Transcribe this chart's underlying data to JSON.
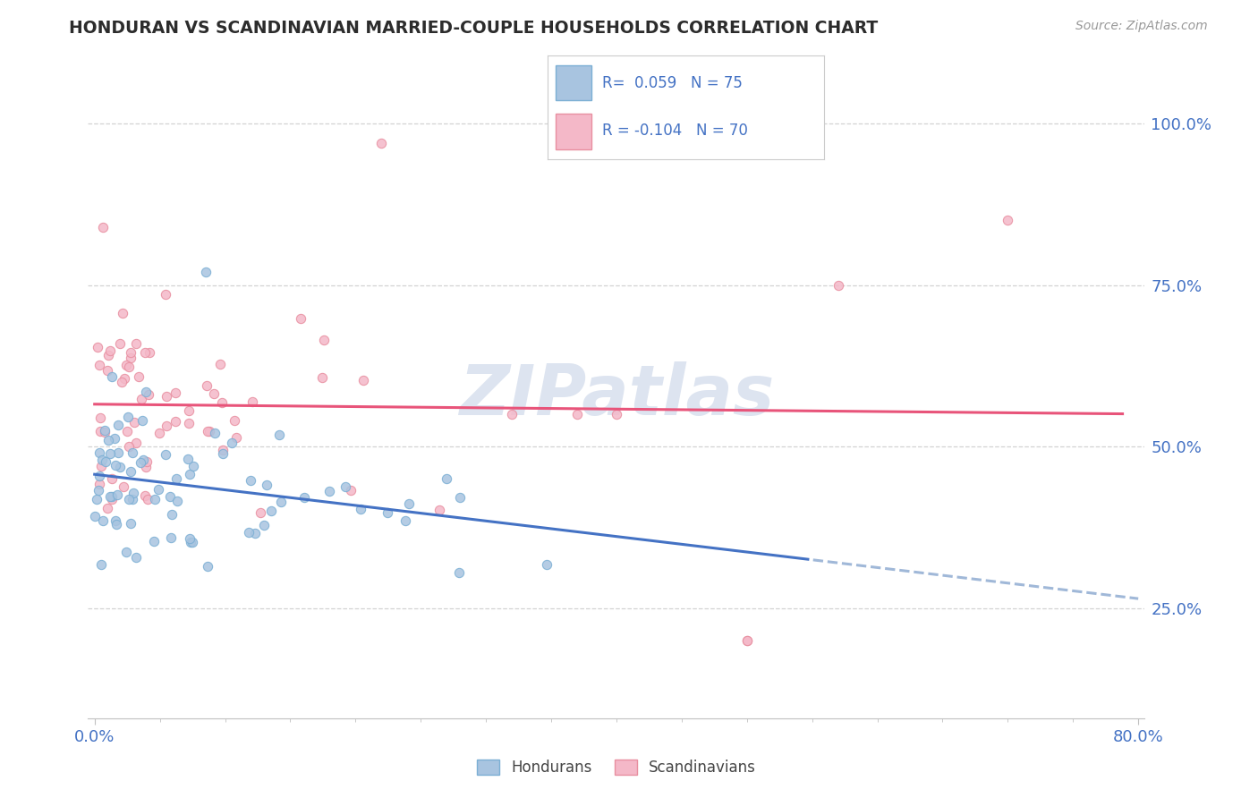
{
  "title": "HONDURAN VS SCANDINAVIAN MARRIED-COUPLE HOUSEHOLDS CORRELATION CHART",
  "source": "Source: ZipAtlas.com",
  "xmin": 0.0,
  "xmax": 0.8,
  "ymin": 0.1,
  "ymax": 1.05,
  "R_honduran": 0.059,
  "N_honduran": 75,
  "R_scandinavian": -0.104,
  "N_scandinavian": 70,
  "color_honduran": "#a8c4e0",
  "color_honduran_edge": "#7bafd4",
  "color_scandinavian": "#f4b8c8",
  "color_scandinavian_edge": "#e88fa0",
  "color_line_honduran": "#4472c4",
  "color_line_scandinavian": "#e8547a",
  "color_dashed": "#a0b8d8",
  "color_grid": "#c8c8c8",
  "title_color": "#2c2c2c",
  "axis_label_color": "#4472c4",
  "watermark_color": "#dde4f0",
  "ylabel_ticks": [
    0.25,
    0.5,
    0.75,
    1.0
  ],
  "ylabel_labels": [
    "25.0%",
    "50.0%",
    "75.0%",
    "100.0%"
  ]
}
